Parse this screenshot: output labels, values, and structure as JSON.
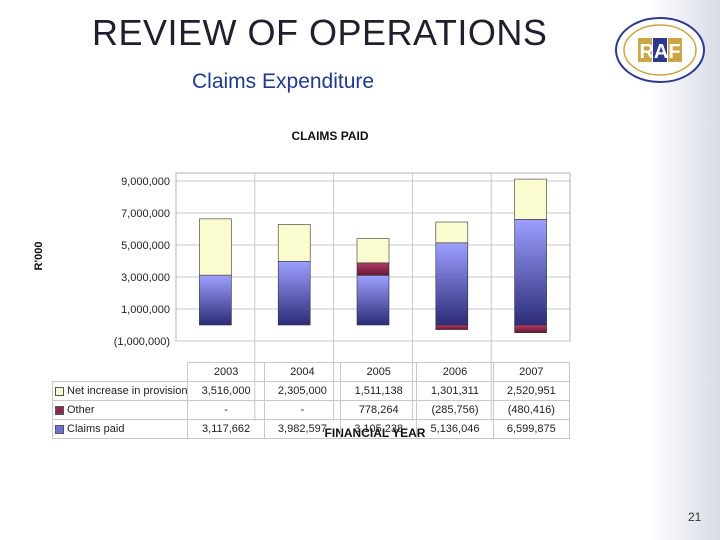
{
  "slide": {
    "title": "REVIEW OF OPERATIONS",
    "subtitle": "Claims Expenditure",
    "page_number": "21",
    "logo_text": "RAF"
  },
  "chart_data": {
    "type": "bar",
    "stacked": true,
    "title": "CLAIMS PAID",
    "xlabel": "FINANCIAL YEAR",
    "ylabel": "R'000",
    "categories": [
      "2003",
      "2004",
      "2005",
      "2006",
      "2007"
    ],
    "ylim": [
      -1000000,
      9500000
    ],
    "yticks": [
      -1000000,
      1000000,
      3000000,
      5000000,
      7000000,
      9000000
    ],
    "ytick_labels": [
      "(1,000,000)",
      "1,000,000",
      "3,000,000",
      "5,000,000",
      "7,000,000",
      "9,000,000"
    ],
    "grid": true,
    "legend": "data-table-below",
    "series": [
      {
        "name": "Claims paid",
        "color": "#7d7fe0",
        "values": [
          3117662,
          3982597,
          3105238,
          5136046,
          6599875
        ],
        "labels": [
          "3,117,662",
          "3,982,597",
          "3,105,238",
          "5,136,046",
          "6,599,875"
        ]
      },
      {
        "name": "Other",
        "color": "#8e2a52",
        "values": [
          0,
          0,
          778264,
          -285756,
          -480416
        ],
        "labels": [
          "-",
          "-",
          "778,264",
          "(285,756)",
          "(480,416)"
        ]
      },
      {
        "name": "Net increase in provision",
        "color": "#fbfbd0",
        "values": [
          3516000,
          2305000,
          1511138,
          1301311,
          2520951
        ],
        "labels": [
          "3,516,000",
          "2,305,000",
          "1,511,138",
          "1,301,311",
          "2,520,951"
        ]
      }
    ],
    "table_order": [
      2,
      1,
      0
    ]
  }
}
